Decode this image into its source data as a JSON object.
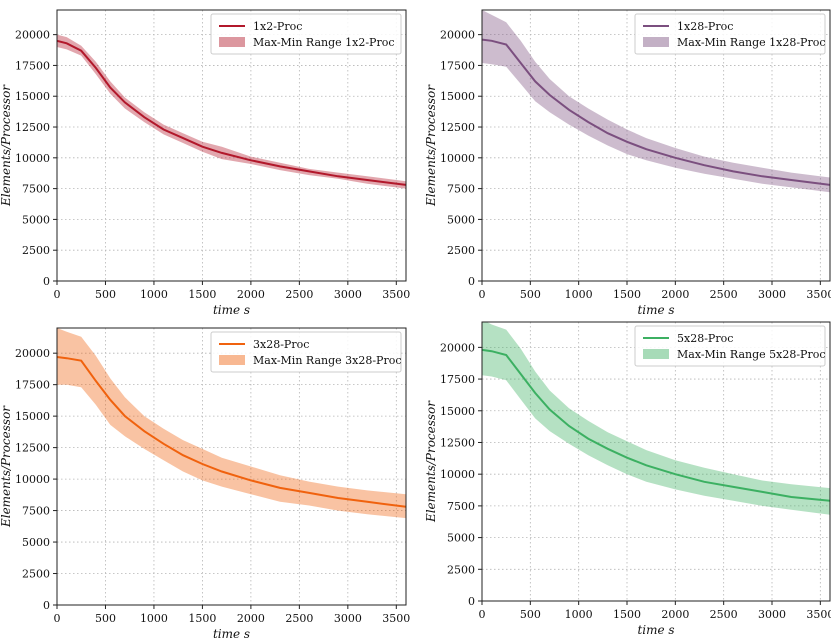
{
  "chart_data": [
    {
      "type": "line",
      "xlabel": "time s",
      "ylabel": "Elements/Processor",
      "xlim": [
        0,
        3600
      ],
      "ylim": [
        0,
        22000
      ],
      "xticks": [
        0,
        500,
        1000,
        1500,
        2000,
        2500,
        3000,
        3500
      ],
      "yticks": [
        0,
        2500,
        5000,
        7500,
        10000,
        12500,
        15000,
        17500,
        20000
      ],
      "grid": true,
      "legend_position": "top-right",
      "color": "#b2182b",
      "series": [
        {
          "name": "1x2-Proc",
          "x": [
            0,
            100,
            250,
            400,
            550,
            700,
            900,
            1100,
            1300,
            1500,
            1700,
            2000,
            2300,
            2600,
            2900,
            3200,
            3600
          ],
          "values": [
            19500,
            19300,
            18700,
            17300,
            15700,
            14500,
            13300,
            12300,
            11600,
            10900,
            10400,
            9800,
            9300,
            8900,
            8500,
            8200,
            7800
          ]
        },
        {
          "name": "Max-Min Range 1x2-Proc",
          "x": [
            0,
            100,
            250,
            400,
            550,
            700,
            900,
            1100,
            1300,
            1500,
            1700,
            2000,
            2300,
            2600,
            2900,
            3200,
            3600
          ],
          "upper": [
            20000,
            19800,
            19100,
            17800,
            16200,
            14900,
            13700,
            12700,
            12000,
            11300,
            10900,
            10100,
            9600,
            9100,
            8800,
            8500,
            8100
          ],
          "lower": [
            19000,
            18800,
            18300,
            16800,
            15200,
            14000,
            12900,
            11900,
            11200,
            10500,
            9900,
            9500,
            9000,
            8600,
            8300,
            7900,
            7500
          ]
        }
      ]
    },
    {
      "type": "line",
      "xlabel": "time s",
      "ylabel": "Elements/Processor",
      "xlim": [
        0,
        3600
      ],
      "ylim": [
        0,
        22000
      ],
      "xticks": [
        0,
        500,
        1000,
        1500,
        2000,
        2500,
        3000,
        3500
      ],
      "yticks": [
        0,
        2500,
        5000,
        7500,
        10000,
        12500,
        15000,
        17500,
        20000
      ],
      "grid": true,
      "legend_position": "top-right",
      "color": "#7b4f7f",
      "series": [
        {
          "name": "1x28-Proc",
          "x": [
            0,
            100,
            250,
            400,
            550,
            700,
            900,
            1100,
            1300,
            1500,
            1700,
            2000,
            2300,
            2600,
            2900,
            3200,
            3600
          ],
          "values": [
            19600,
            19500,
            19200,
            17700,
            16200,
            15100,
            13900,
            12900,
            12000,
            11300,
            10700,
            10000,
            9400,
            8900,
            8500,
            8200,
            7800
          ]
        },
        {
          "name": "Max-Min Range 1x28-Proc",
          "x": [
            0,
            100,
            250,
            400,
            550,
            700,
            900,
            1100,
            1300,
            1500,
            1700,
            2000,
            2300,
            2600,
            2900,
            3200,
            3600
          ],
          "upper": [
            22000,
            21600,
            21000,
            19500,
            17800,
            16400,
            15000,
            14000,
            13100,
            12300,
            11600,
            10800,
            10100,
            9600,
            9200,
            8800,
            8400
          ],
          "lower": [
            17700,
            17600,
            17400,
            16000,
            14600,
            13700,
            12700,
            11800,
            11000,
            10300,
            9800,
            9200,
            8700,
            8300,
            7900,
            7600,
            7200
          ]
        }
      ]
    },
    {
      "type": "line",
      "xlabel": "time s",
      "ylabel": "Elements/Processor",
      "xlim": [
        0,
        3600
      ],
      "ylim": [
        0,
        22000
      ],
      "xticks": [
        0,
        500,
        1000,
        1500,
        2000,
        2500,
        3000,
        3500
      ],
      "yticks": [
        0,
        2500,
        5000,
        7500,
        10000,
        12500,
        15000,
        17500,
        20000
      ],
      "grid": true,
      "legend_position": "top-right",
      "color": "#f0620e",
      "series": [
        {
          "name": "3x28-Proc",
          "x": [
            0,
            100,
            250,
            400,
            550,
            700,
            900,
            1100,
            1300,
            1500,
            1700,
            2000,
            2300,
            2600,
            2900,
            3200,
            3600
          ],
          "values": [
            19700,
            19600,
            19400,
            17800,
            16300,
            15000,
            13800,
            12800,
            11900,
            11200,
            10600,
            9900,
            9300,
            8900,
            8500,
            8200,
            7800
          ]
        },
        {
          "name": "Max-Min Range 3x28-Proc",
          "x": [
            0,
            100,
            250,
            400,
            550,
            700,
            900,
            1100,
            1300,
            1500,
            1700,
            2000,
            2300,
            2600,
            2900,
            3200,
            3600
          ],
          "upper": [
            22000,
            21700,
            21300,
            19800,
            18000,
            16500,
            15000,
            14000,
            13100,
            12400,
            11700,
            11000,
            10300,
            9800,
            9400,
            9100,
            8800
          ],
          "lower": [
            17500,
            17500,
            17300,
            15900,
            14300,
            13400,
            12400,
            11500,
            10600,
            9900,
            9400,
            8800,
            8200,
            7900,
            7500,
            7200,
            6900
          ]
        }
      ]
    },
    {
      "type": "line",
      "xlabel": "time s",
      "ylabel": "Elements/Processor",
      "xlim": [
        0,
        3600
      ],
      "ylim": [
        0,
        22000
      ],
      "xticks": [
        0,
        500,
        1000,
        1500,
        2000,
        2500,
        3000,
        3500
      ],
      "yticks": [
        0,
        2500,
        5000,
        7500,
        10000,
        12500,
        15000,
        17500,
        20000
      ],
      "grid": true,
      "legend_position": "top-right",
      "color": "#3cb062",
      "series": [
        {
          "name": "5x28-Proc",
          "x": [
            0,
            100,
            250,
            400,
            550,
            700,
            900,
            1100,
            1300,
            1500,
            1700,
            2000,
            2300,
            2600,
            2900,
            3200,
            3600
          ],
          "values": [
            19800,
            19700,
            19400,
            17900,
            16400,
            15100,
            13800,
            12800,
            12000,
            11300,
            10700,
            10000,
            9400,
            9000,
            8600,
            8200,
            7900
          ]
        },
        {
          "name": "Max-Min Range 5x28-Proc",
          "x": [
            0,
            100,
            250,
            400,
            550,
            700,
            900,
            1100,
            1300,
            1500,
            1700,
            2000,
            2300,
            2600,
            2900,
            3200,
            3600
          ],
          "upper": [
            22200,
            21800,
            21400,
            19900,
            18100,
            16600,
            15200,
            14200,
            13300,
            12600,
            11900,
            11100,
            10500,
            10000,
            9500,
            9200,
            8900
          ],
          "lower": [
            17800,
            17700,
            17400,
            15900,
            14400,
            13400,
            12400,
            11500,
            10700,
            10000,
            9400,
            8800,
            8300,
            7900,
            7500,
            7200,
            6800
          ]
        }
      ]
    }
  ]
}
